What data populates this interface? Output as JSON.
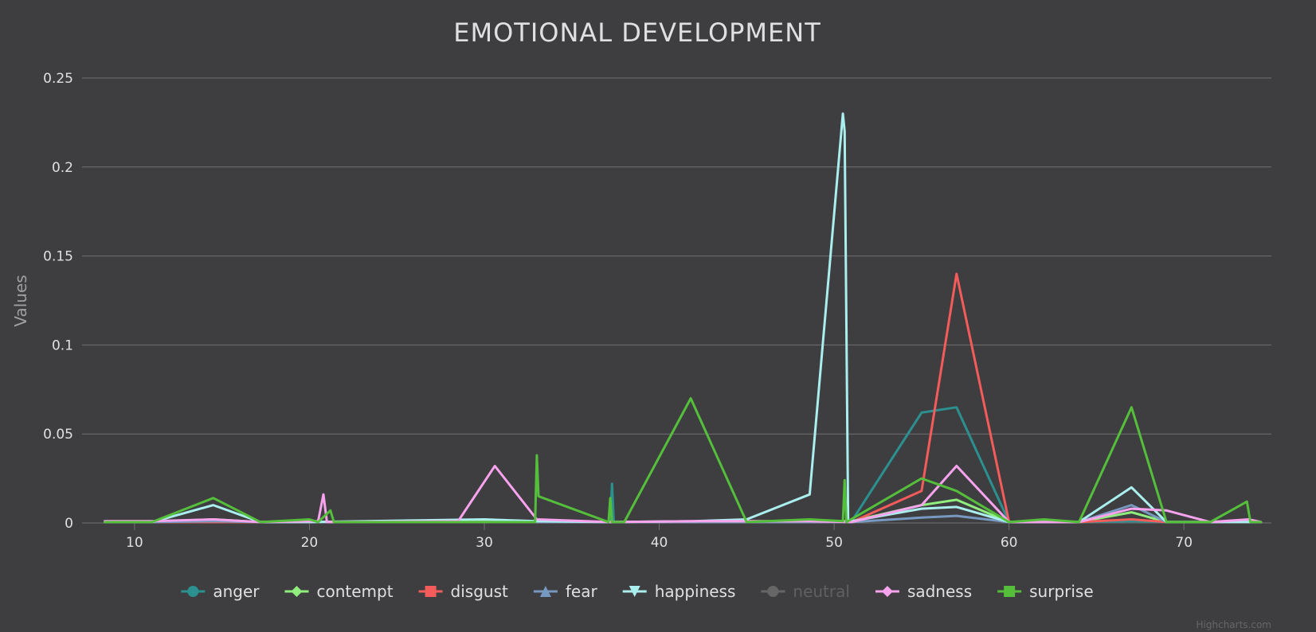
{
  "chart_data": {
    "type": "line",
    "title": "EMOTIONAL DEVELOPMENT",
    "xlabel": "",
    "ylabel": "Values",
    "xlim": [
      7,
      75
    ],
    "ylim": [
      0,
      0.25
    ],
    "x_ticks": [
      "10",
      "20",
      "30",
      "40",
      "50",
      "60",
      "70"
    ],
    "x_tick_values": [
      10,
      20,
      30,
      40,
      50,
      60,
      70
    ],
    "y_ticks": [
      "0",
      "0.05",
      "0.1",
      "0.15",
      "0.2",
      "0.25"
    ],
    "y_tick_values": [
      0,
      0.05,
      0.1,
      0.15,
      0.2,
      0.25
    ],
    "grid": true,
    "legend_position": "bottom",
    "credit": "Highcharts.com",
    "series": [
      {
        "name": "anger",
        "color": "#2b908f",
        "marker": "circle",
        "visible": true,
        "points": [
          [
            8.3,
            0.0005
          ],
          [
            11,
            0.0005
          ],
          [
            14.5,
            0.001
          ],
          [
            17.2,
            0.0005
          ],
          [
            20,
            0.0005
          ],
          [
            21,
            0.0005
          ],
          [
            30,
            0.0005
          ],
          [
            32.9,
            0.0005
          ],
          [
            37.2,
            0.0005
          ],
          [
            37.3,
            0.022
          ],
          [
            37.4,
            0.0005
          ],
          [
            42,
            0.0005
          ],
          [
            45,
            0.0005
          ],
          [
            48.6,
            0.0005
          ],
          [
            50.6,
            0.001
          ],
          [
            51,
            0.001
          ],
          [
            55,
            0.062
          ],
          [
            57,
            0.065
          ],
          [
            60,
            0.0005
          ],
          [
            64,
            0.0005
          ],
          [
            67,
            0.001
          ],
          [
            69,
            0.0005
          ],
          [
            71.5,
            0.0005
          ],
          [
            73.7,
            0.0005
          ],
          [
            74.4,
            0.0005
          ]
        ]
      },
      {
        "name": "contempt",
        "color": "#90ee7e",
        "marker": "diamond",
        "visible": true,
        "points": [
          [
            8.3,
            0.0005
          ],
          [
            11,
            0.0005
          ],
          [
            14.5,
            0.002
          ],
          [
            17.2,
            0.0005
          ],
          [
            20,
            0.0005
          ],
          [
            30,
            0.001
          ],
          [
            33,
            0.001
          ],
          [
            37.2,
            0.0005
          ],
          [
            42,
            0.0005
          ],
          [
            45,
            0.0005
          ],
          [
            48.6,
            0.0005
          ],
          [
            50.6,
            0.001
          ],
          [
            51,
            0.001
          ],
          [
            55,
            0.01
          ],
          [
            57,
            0.013
          ],
          [
            60,
            0.0005
          ],
          [
            64,
            0.0005
          ],
          [
            67,
            0.006
          ],
          [
            69,
            0.0005
          ],
          [
            71.5,
            0.0005
          ],
          [
            73.7,
            0.001
          ],
          [
            74.4,
            0.0005
          ]
        ]
      },
      {
        "name": "disgust",
        "color": "#f45b5b",
        "marker": "square",
        "visible": true,
        "points": [
          [
            8.3,
            0.0005
          ],
          [
            11,
            0.0005
          ],
          [
            14.5,
            0.0005
          ],
          [
            17.2,
            0.0005
          ],
          [
            20,
            0.0005
          ],
          [
            30,
            0.0005
          ],
          [
            33,
            0.0005
          ],
          [
            37.2,
            0.0005
          ],
          [
            42,
            0.0005
          ],
          [
            45,
            0.0005
          ],
          [
            48.6,
            0.0005
          ],
          [
            50.6,
            0.0005
          ],
          [
            51,
            0.0005
          ],
          [
            55,
            0.018
          ],
          [
            57,
            0.14
          ],
          [
            60,
            0.0005
          ],
          [
            64,
            0.0005
          ],
          [
            67,
            0.002
          ],
          [
            69,
            0.0005
          ],
          [
            71.5,
            0.0005
          ],
          [
            73.7,
            0.0005
          ],
          [
            74.4,
            0.0005
          ]
        ]
      },
      {
        "name": "fear",
        "color": "#7798bf",
        "marker": "triangle",
        "visible": true,
        "points": [
          [
            8.3,
            0.0005
          ],
          [
            11,
            0.0005
          ],
          [
            14.5,
            0.001
          ],
          [
            17.2,
            0.0005
          ],
          [
            20,
            0.0005
          ],
          [
            30,
            0.0005
          ],
          [
            33,
            0.0005
          ],
          [
            37.2,
            0.0005
          ],
          [
            42,
            0.0005
          ],
          [
            45,
            0.0005
          ],
          [
            48.6,
            0.0005
          ],
          [
            50.6,
            0.0005
          ],
          [
            51,
            0.0005
          ],
          [
            55,
            0.003
          ],
          [
            57,
            0.004
          ],
          [
            60,
            0.0005
          ],
          [
            64,
            0.0005
          ],
          [
            67,
            0.01
          ],
          [
            69,
            0.0005
          ],
          [
            71.5,
            0.0005
          ],
          [
            73.7,
            0.0005
          ],
          [
            74.4,
            0.0005
          ]
        ]
      },
      {
        "name": "happiness",
        "color": "#aaeeee",
        "marker": "triangle-down",
        "visible": true,
        "points": [
          [
            8.3,
            0.0005
          ],
          [
            11,
            0.0005
          ],
          [
            14.5,
            0.01
          ],
          [
            17.2,
            0.0005
          ],
          [
            20,
            0.0005
          ],
          [
            30,
            0.002
          ],
          [
            33,
            0.001
          ],
          [
            37.2,
            0.0005
          ],
          [
            42,
            0.001
          ],
          [
            45,
            0.002
          ],
          [
            48.6,
            0.016
          ],
          [
            50.5,
            0.23
          ],
          [
            50.6,
            0.22
          ],
          [
            50.8,
            0.001
          ],
          [
            51,
            0.001
          ],
          [
            55,
            0.008
          ],
          [
            57,
            0.009
          ],
          [
            60,
            0.0005
          ],
          [
            64,
            0.0005
          ],
          [
            67,
            0.02
          ],
          [
            69,
            0.0005
          ],
          [
            71.5,
            0.0005
          ],
          [
            73.7,
            0.0005
          ],
          [
            74.4,
            0.0005
          ]
        ]
      },
      {
        "name": "neutral",
        "color": "#777777",
        "marker": "circle",
        "visible": false,
        "points": []
      },
      {
        "name": "sadness",
        "color": "#f7a3ee",
        "marker": "diamond",
        "visible": true,
        "points": [
          [
            8.3,
            0.001
          ],
          [
            11,
            0.001
          ],
          [
            14.5,
            0.002
          ],
          [
            17.2,
            0.0005
          ],
          [
            20,
            0.001
          ],
          [
            20.5,
            0.001
          ],
          [
            20.8,
            0.016
          ],
          [
            21,
            0.0005
          ],
          [
            28.5,
            0.001
          ],
          [
            30.6,
            0.032
          ],
          [
            33,
            0.002
          ],
          [
            37.2,
            0.0005
          ],
          [
            42,
            0.001
          ],
          [
            45,
            0.001
          ],
          [
            48.6,
            0.001
          ],
          [
            51,
            0.0005
          ],
          [
            55,
            0.01
          ],
          [
            57,
            0.032
          ],
          [
            60,
            0.0005
          ],
          [
            64,
            0.0005
          ],
          [
            67,
            0.008
          ],
          [
            69,
            0.007
          ],
          [
            71.5,
            0.0005
          ],
          [
            73.7,
            0.002
          ],
          [
            74.4,
            0.0005
          ]
        ]
      },
      {
        "name": "surprise",
        "color": "#55bf3b",
        "marker": "square",
        "visible": true,
        "points": [
          [
            8.3,
            0.0005
          ],
          [
            11,
            0.0005
          ],
          [
            14.5,
            0.014
          ],
          [
            17.2,
            0.0005
          ],
          [
            20,
            0.002
          ],
          [
            20.5,
            0.0005
          ],
          [
            21.2,
            0.007
          ],
          [
            21.4,
            0.0005
          ],
          [
            32.9,
            0.0005
          ],
          [
            33,
            0.038
          ],
          [
            33.1,
            0.015
          ],
          [
            37.1,
            0.0005
          ],
          [
            37.2,
            0.014
          ],
          [
            37.3,
            0.0005
          ],
          [
            38,
            0.0005
          ],
          [
            41.8,
            0.07
          ],
          [
            45,
            0.0005
          ],
          [
            48.6,
            0.002
          ],
          [
            50.5,
            0.001
          ],
          [
            50.6,
            0.024
          ],
          [
            50.7,
            0.0005
          ],
          [
            55,
            0.025
          ],
          [
            57,
            0.018
          ],
          [
            60,
            0.0005
          ],
          [
            62,
            0.002
          ],
          [
            64,
            0.0005
          ],
          [
            67,
            0.065
          ],
          [
            69,
            0.0005
          ],
          [
            71.5,
            0.0005
          ],
          [
            73.6,
            0.012
          ],
          [
            73.8,
            0.0005
          ],
          [
            74.4,
            0.0005
          ]
        ]
      }
    ]
  }
}
